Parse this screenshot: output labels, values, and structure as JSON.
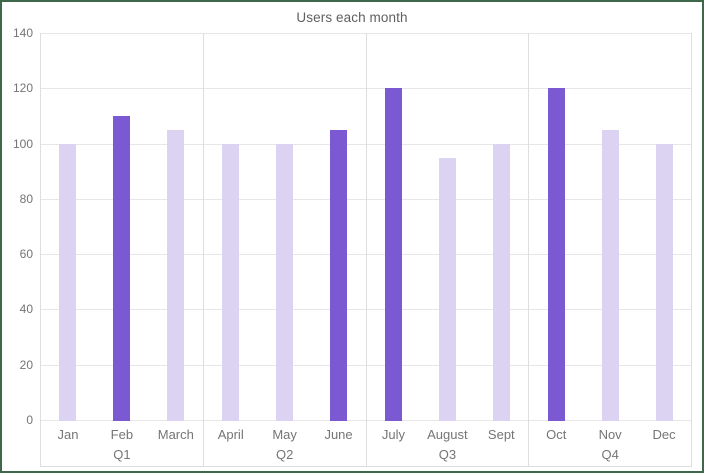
{
  "window": {
    "border_color": "#3F6749"
  },
  "chart_data": {
    "type": "bar",
    "title": "Users each month",
    "xlabel": "",
    "ylabel": "",
    "categories": [
      "Jan",
      "Feb",
      "March",
      "April",
      "May",
      "June",
      "July",
      "August",
      "Sept",
      "Oct",
      "Nov",
      "Dec"
    ],
    "values": [
      100,
      110,
      105,
      100,
      100,
      105,
      120,
      95,
      100,
      120,
      105,
      100
    ],
    "highlighted_months": [
      "Feb",
      "June",
      "July",
      "Oct"
    ],
    "quarters": [
      {
        "label": "Q1",
        "months": [
          {
            "label": "Jan",
            "value": 100,
            "highlight": false
          },
          {
            "label": "Feb",
            "value": 110,
            "highlight": true
          },
          {
            "label": "March",
            "value": 105,
            "highlight": false
          }
        ]
      },
      {
        "label": "Q2",
        "months": [
          {
            "label": "April",
            "value": 100,
            "highlight": false
          },
          {
            "label": "May",
            "value": 100,
            "highlight": false
          },
          {
            "label": "June",
            "value": 105,
            "highlight": true
          }
        ]
      },
      {
        "label": "Q3",
        "months": [
          {
            "label": "July",
            "value": 120,
            "highlight": true
          },
          {
            "label": "August",
            "value": 95,
            "highlight": false
          },
          {
            "label": "Sept",
            "value": 100,
            "highlight": false
          }
        ]
      },
      {
        "label": "Q4",
        "months": [
          {
            "label": "Oct",
            "value": 120,
            "highlight": true
          },
          {
            "label": "Nov",
            "value": 105,
            "highlight": false
          },
          {
            "label": "Dec",
            "value": 100,
            "highlight": false
          }
        ]
      }
    ],
    "ylim": [
      0,
      140
    ],
    "yticks": [
      0,
      20,
      40,
      60,
      80,
      100,
      120,
      140
    ],
    "grid": true,
    "legend": "none",
    "colors": {
      "bar": "#DCD3F2",
      "bar_highlight": "#7B59D2",
      "gridline": "#e7e7e7",
      "axis_text": "#757575",
      "title_text": "#5f5f5f"
    }
  }
}
